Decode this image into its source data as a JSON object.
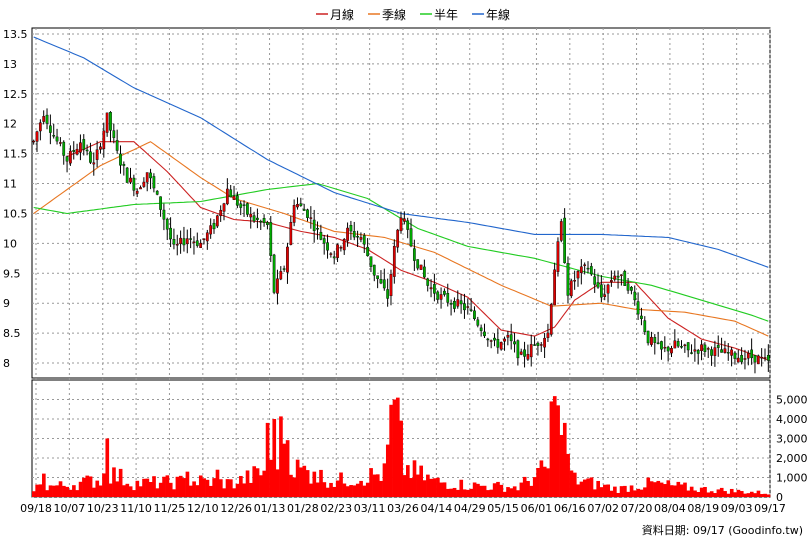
{
  "chart_data": {
    "type": "candlestick",
    "legend": {
      "placement": "top-center",
      "items": [
        {
          "label": "月線",
          "color": "#cc2222"
        },
        {
          "label": "季線",
          "color": "#e87722"
        },
        {
          "label": "半年",
          "color": "#22cc22"
        },
        {
          "label": "年線",
          "color": "#2266cc"
        }
      ]
    },
    "price_axis": {
      "min": 7.75,
      "max": 13.6,
      "ticks": [
        8,
        8.5,
        9,
        9.5,
        10,
        10.5,
        11,
        11.5,
        12,
        12.5,
        13,
        13.5
      ],
      "tick_labels": [
        "8",
        "8.5",
        "9",
        "9.5",
        "10",
        "10.5",
        "11",
        "11.5",
        "12",
        "12.5",
        "13",
        "13.5"
      ]
    },
    "volume_axis": {
      "min": 0,
      "max": 6000,
      "ticks": [
        0,
        1000,
        2000,
        3000,
        4000,
        5000
      ],
      "tick_labels": [
        "0",
        "1,000",
        "2,000",
        "3,000",
        "4,000",
        "5,000"
      ]
    },
    "x_tick_labels": [
      "09/18",
      "10/07",
      "10/23",
      "11/10",
      "11/25",
      "12/10",
      "12/26",
      "01/13",
      "01/28",
      "02/23",
      "03/11",
      "03/26",
      "04/14",
      "04/29",
      "05/15",
      "06/01",
      "06/16",
      "07/02",
      "07/20",
      "08/04",
      "08/19",
      "09/03",
      "09/17"
    ],
    "grid": true,
    "up_color": "#dd0000",
    "down_color": "#00aa00",
    "volume_color": "#ff0000",
    "price_anchors": [
      [
        0,
        11.7
      ],
      [
        3,
        12.2
      ],
      [
        6,
        11.8
      ],
      [
        10,
        11.4
      ],
      [
        14,
        11.7
      ],
      [
        18,
        11.3
      ],
      [
        22,
        12.1
      ],
      [
        25,
        11.5
      ],
      [
        28,
        11.1
      ],
      [
        31,
        10.9
      ],
      [
        34,
        11.2
      ],
      [
        38,
        10.6
      ],
      [
        42,
        9.9
      ],
      [
        46,
        10.1
      ],
      [
        50,
        10.0
      ],
      [
        54,
        10.3
      ],
      [
        58,
        10.9
      ],
      [
        62,
        10.6
      ],
      [
        66,
        10.4
      ],
      [
        70,
        10.3
      ],
      [
        72,
        9.2
      ],
      [
        75,
        9.6
      ],
      [
        78,
        10.7
      ],
      [
        82,
        10.5
      ],
      [
        86,
        10.1
      ],
      [
        90,
        9.8
      ],
      [
        94,
        10.2
      ],
      [
        98,
        10.1
      ],
      [
        102,
        9.5
      ],
      [
        106,
        9.1
      ],
      [
        108,
        9.9
      ],
      [
        110,
        10.5
      ],
      [
        114,
        9.8
      ],
      [
        118,
        9.3
      ],
      [
        122,
        9.1
      ],
      [
        126,
        9.0
      ],
      [
        130,
        8.9
      ],
      [
        134,
        8.6
      ],
      [
        138,
        8.3
      ],
      [
        142,
        8.4
      ],
      [
        146,
        8.1
      ],
      [
        150,
        8.3
      ],
      [
        154,
        8.5
      ],
      [
        156,
        9.6
      ],
      [
        158,
        10.3
      ],
      [
        160,
        9.2
      ],
      [
        163,
        9.5
      ],
      [
        166,
        9.6
      ],
      [
        170,
        9.1
      ],
      [
        174,
        9.5
      ],
      [
        178,
        9.3
      ],
      [
        181,
        8.9
      ],
      [
        184,
        8.4
      ],
      [
        188,
        8.2
      ],
      [
        192,
        8.3
      ],
      [
        196,
        8.2
      ],
      [
        200,
        8.25
      ],
      [
        204,
        8.2
      ],
      [
        208,
        8.15
      ],
      [
        212,
        8.1
      ],
      [
        216,
        8.1
      ],
      [
        220,
        8.0
      ]
    ],
    "ma_series": [
      {
        "label": "月線",
        "color": "#cc2222",
        "points": [
          [
            10,
            11.45
          ],
          [
            20,
            11.7
          ],
          [
            30,
            11.7
          ],
          [
            40,
            11.2
          ],
          [
            50,
            10.6
          ],
          [
            60,
            10.4
          ],
          [
            70,
            10.35
          ],
          [
            80,
            10.2
          ],
          [
            90,
            10.1
          ],
          [
            100,
            9.9
          ],
          [
            110,
            9.55
          ],
          [
            120,
            9.35
          ],
          [
            130,
            9.1
          ],
          [
            140,
            8.55
          ],
          [
            150,
            8.45
          ],
          [
            156,
            8.6
          ],
          [
            162,
            9.05
          ],
          [
            170,
            9.35
          ],
          [
            180,
            9.35
          ],
          [
            190,
            8.75
          ],
          [
            200,
            8.4
          ],
          [
            210,
            8.25
          ],
          [
            220,
            8.05
          ]
        ]
      },
      {
        "label": "季線",
        "color": "#e87722",
        "points": [
          [
            0,
            10.5
          ],
          [
            20,
            11.3
          ],
          [
            35,
            11.7
          ],
          [
            50,
            11.1
          ],
          [
            60,
            10.75
          ],
          [
            75,
            10.5
          ],
          [
            90,
            10.2
          ],
          [
            105,
            10.1
          ],
          [
            120,
            9.85
          ],
          [
            140,
            9.3
          ],
          [
            155,
            8.95
          ],
          [
            170,
            9.0
          ],
          [
            180,
            8.9
          ],
          [
            195,
            8.85
          ],
          [
            210,
            8.7
          ],
          [
            220,
            8.45
          ]
        ]
      },
      {
        "label": "半年",
        "color": "#22cc22",
        "points": [
          [
            0,
            10.6
          ],
          [
            10,
            10.5
          ],
          [
            30,
            10.65
          ],
          [
            50,
            10.7
          ],
          [
            70,
            10.9
          ],
          [
            85,
            11.0
          ],
          [
            100,
            10.75
          ],
          [
            115,
            10.25
          ],
          [
            130,
            9.95
          ],
          [
            150,
            9.75
          ],
          [
            170,
            9.45
          ],
          [
            185,
            9.3
          ],
          [
            200,
            9.05
          ],
          [
            215,
            8.8
          ],
          [
            220,
            8.7
          ]
        ]
      },
      {
        "label": "年線",
        "color": "#2266cc",
        "points": [
          [
            0,
            13.45
          ],
          [
            15,
            13.1
          ],
          [
            30,
            12.6
          ],
          [
            50,
            12.1
          ],
          [
            70,
            11.4
          ],
          [
            90,
            10.85
          ],
          [
            110,
            10.5
          ],
          [
            130,
            10.35
          ],
          [
            150,
            10.15
          ],
          [
            170,
            10.15
          ],
          [
            190,
            10.1
          ],
          [
            205,
            9.9
          ],
          [
            220,
            9.6
          ]
        ]
      }
    ],
    "volume_anchors": [
      [
        0,
        500
      ],
      [
        10,
        600
      ],
      [
        20,
        900
      ],
      [
        22,
        1300
      ],
      [
        30,
        700
      ],
      [
        50,
        800
      ],
      [
        60,
        700
      ],
      [
        72,
        1500
      ],
      [
        75,
        3700
      ],
      [
        78,
        1500
      ],
      [
        90,
        800
      ],
      [
        105,
        1200
      ],
      [
        108,
        5000
      ],
      [
        111,
        1500
      ],
      [
        120,
        800
      ],
      [
        130,
        600
      ],
      [
        145,
        500
      ],
      [
        154,
        1500
      ],
      [
        156,
        4000
      ],
      [
        158,
        2500
      ],
      [
        162,
        900
      ],
      [
        175,
        400
      ],
      [
        185,
        700
      ],
      [
        200,
        400
      ],
      [
        220,
        200
      ]
    ],
    "volume_spikes": [
      [
        3,
        1200
      ],
      [
        22,
        3000
      ],
      [
        46,
        1300
      ],
      [
        55,
        1400
      ],
      [
        70,
        3800
      ],
      [
        72,
        4000
      ],
      [
        84,
        1300
      ],
      [
        108,
        5000
      ],
      [
        155,
        4900
      ],
      [
        157,
        4700
      ],
      [
        159,
        3800
      ]
    ],
    "total_bars": 221
  },
  "source_note": "資料日期: 09/17 (Goodinfo.tw)"
}
